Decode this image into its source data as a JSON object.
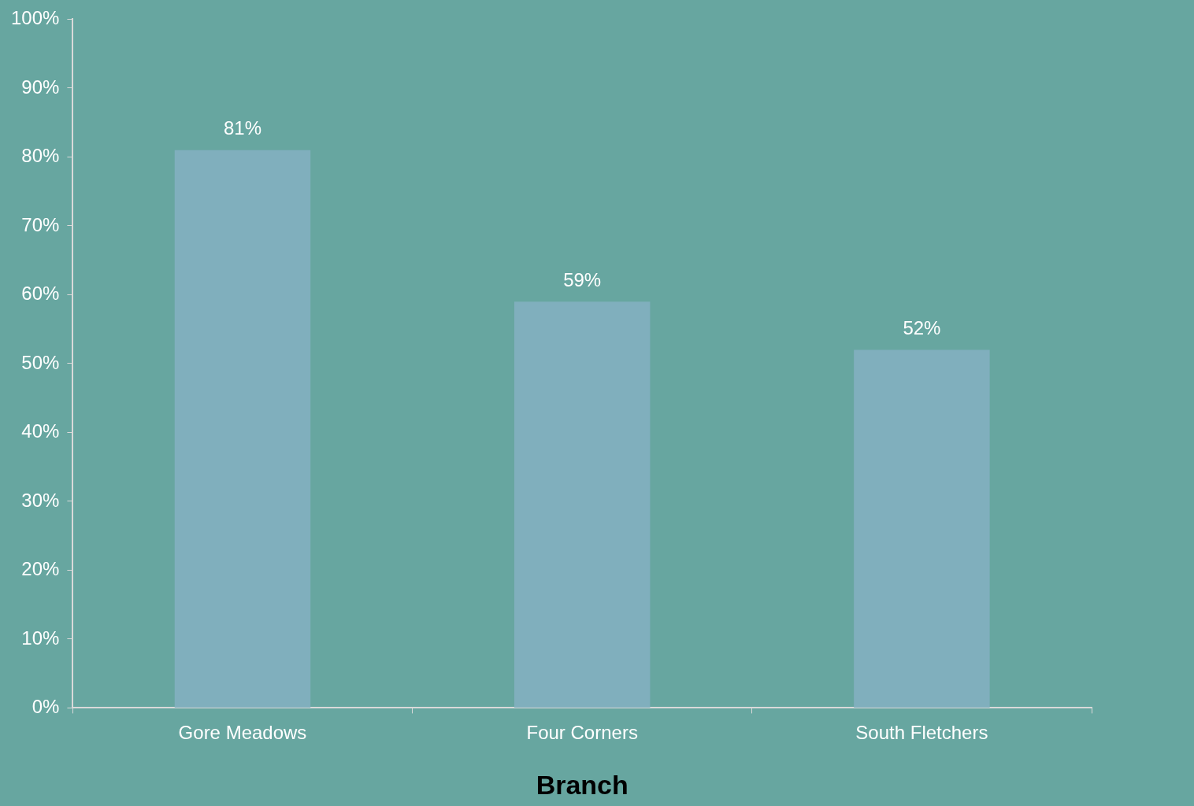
{
  "chart_data": {
    "type": "bar",
    "xlabel": "Branch",
    "categories": [
      "Gore Meadows",
      "Four Corners",
      "South Fletchers"
    ],
    "values": [
      81,
      59,
      52
    ],
    "color": "#80afbd",
    "value_labels": [
      "81%",
      "59%",
      "52%"
    ],
    "ylim": [
      0,
      100
    ],
    "yticks": [
      {
        "value": 0,
        "label": "0%"
      },
      {
        "value": 10,
        "label": "10%"
      },
      {
        "value": 20,
        "label": "20%"
      },
      {
        "value": 30,
        "label": "30%"
      },
      {
        "value": 40,
        "label": "40%"
      },
      {
        "value": 50,
        "label": "50%"
      },
      {
        "value": 60,
        "label": "60%"
      },
      {
        "value": 70,
        "label": "70%"
      },
      {
        "value": 80,
        "label": "80%"
      },
      {
        "value": 90,
        "label": "90%"
      },
      {
        "value": 100,
        "label": "100%"
      }
    ],
    "grid": false,
    "legend": false
  }
}
